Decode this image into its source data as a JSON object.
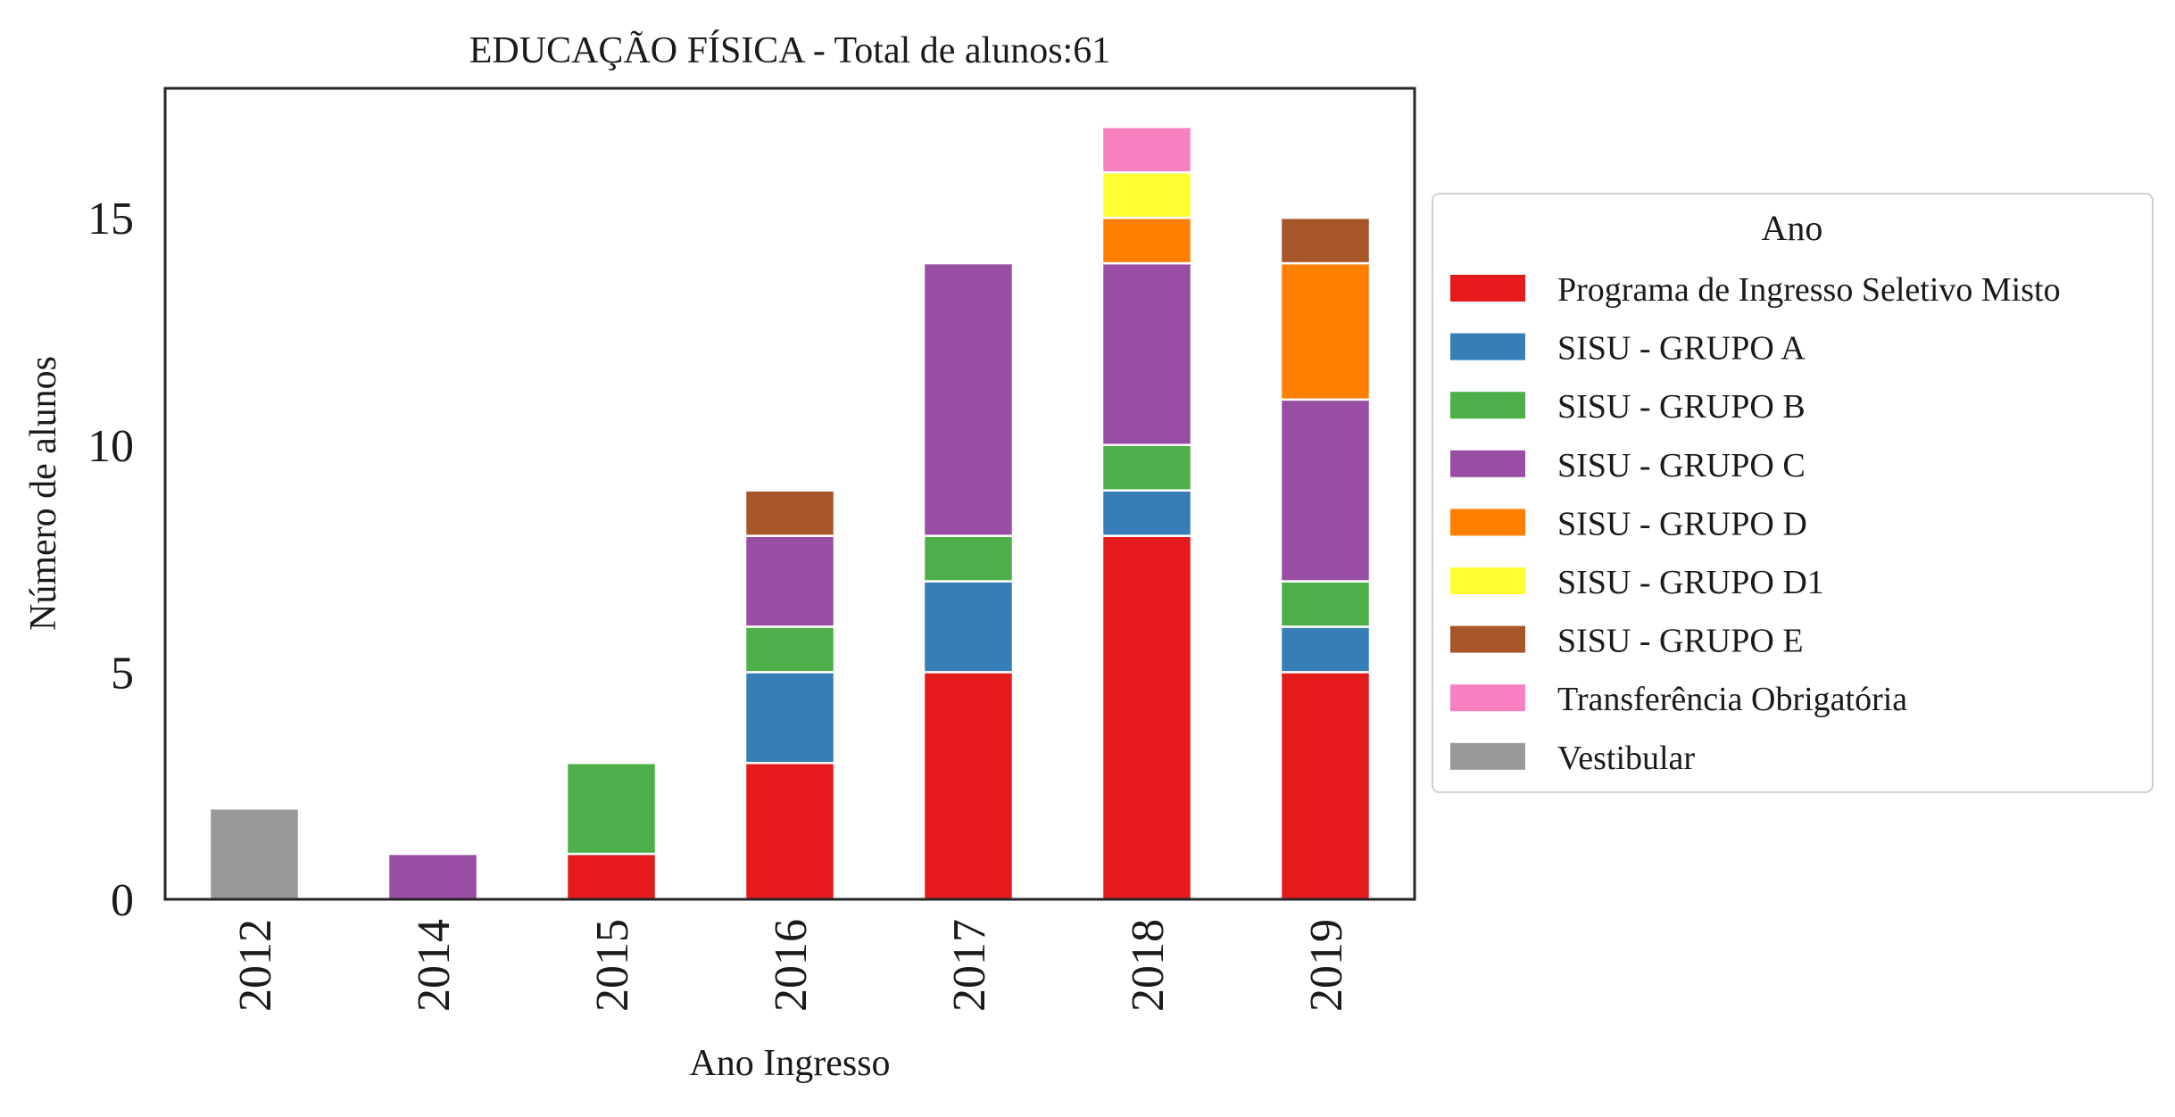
{
  "chart_data": {
    "type": "bar",
    "stacked": true,
    "title": "EDUCAÇÃO FÍSICA - Total de alunos:61",
    "xlabel": "Ano Ingresso",
    "ylabel": "Número de alunos",
    "ylim": [
      0,
      17.85
    ],
    "yticks": [
      0,
      5,
      10,
      15
    ],
    "grid": false,
    "legend_title": "Ano",
    "legend_placement": "right-outside",
    "categories": [
      "2012",
      "2014",
      "2015",
      "2016",
      "2017",
      "2018",
      "2019"
    ],
    "series": [
      {
        "name": "Programa de Ingresso Seletivo Misto",
        "color": "#e41a1c",
        "values": [
          0,
          0,
          1,
          3,
          5,
          8,
          5
        ]
      },
      {
        "name": "SISU - GRUPO A",
        "color": "#377eb8",
        "values": [
          0,
          0,
          0,
          2,
          2,
          1,
          1
        ]
      },
      {
        "name": "SISU - GRUPO B",
        "color": "#4daf4a",
        "values": [
          0,
          0,
          2,
          1,
          1,
          1,
          1
        ]
      },
      {
        "name": "SISU - GRUPO C",
        "color": "#984ea3",
        "values": [
          0,
          1,
          0,
          2,
          6,
          4,
          4
        ]
      },
      {
        "name": "SISU - GRUPO D",
        "color": "#ff7f00",
        "values": [
          0,
          0,
          0,
          0,
          0,
          1,
          3
        ]
      },
      {
        "name": "SISU - GRUPO D1",
        "color": "#ffff33",
        "values": [
          0,
          0,
          0,
          0,
          0,
          1,
          0
        ]
      },
      {
        "name": "SISU - GRUPO E",
        "color": "#a65628",
        "values": [
          0,
          0,
          0,
          1,
          0,
          0,
          1
        ]
      },
      {
        "name": "Transferência Obrigatória",
        "color": "#f781bf",
        "values": [
          0,
          0,
          0,
          0,
          0,
          1,
          0
        ]
      },
      {
        "name": "Vestibular",
        "color": "#999999",
        "values": [
          2,
          0,
          0,
          0,
          0,
          0,
          0
        ]
      }
    ]
  }
}
